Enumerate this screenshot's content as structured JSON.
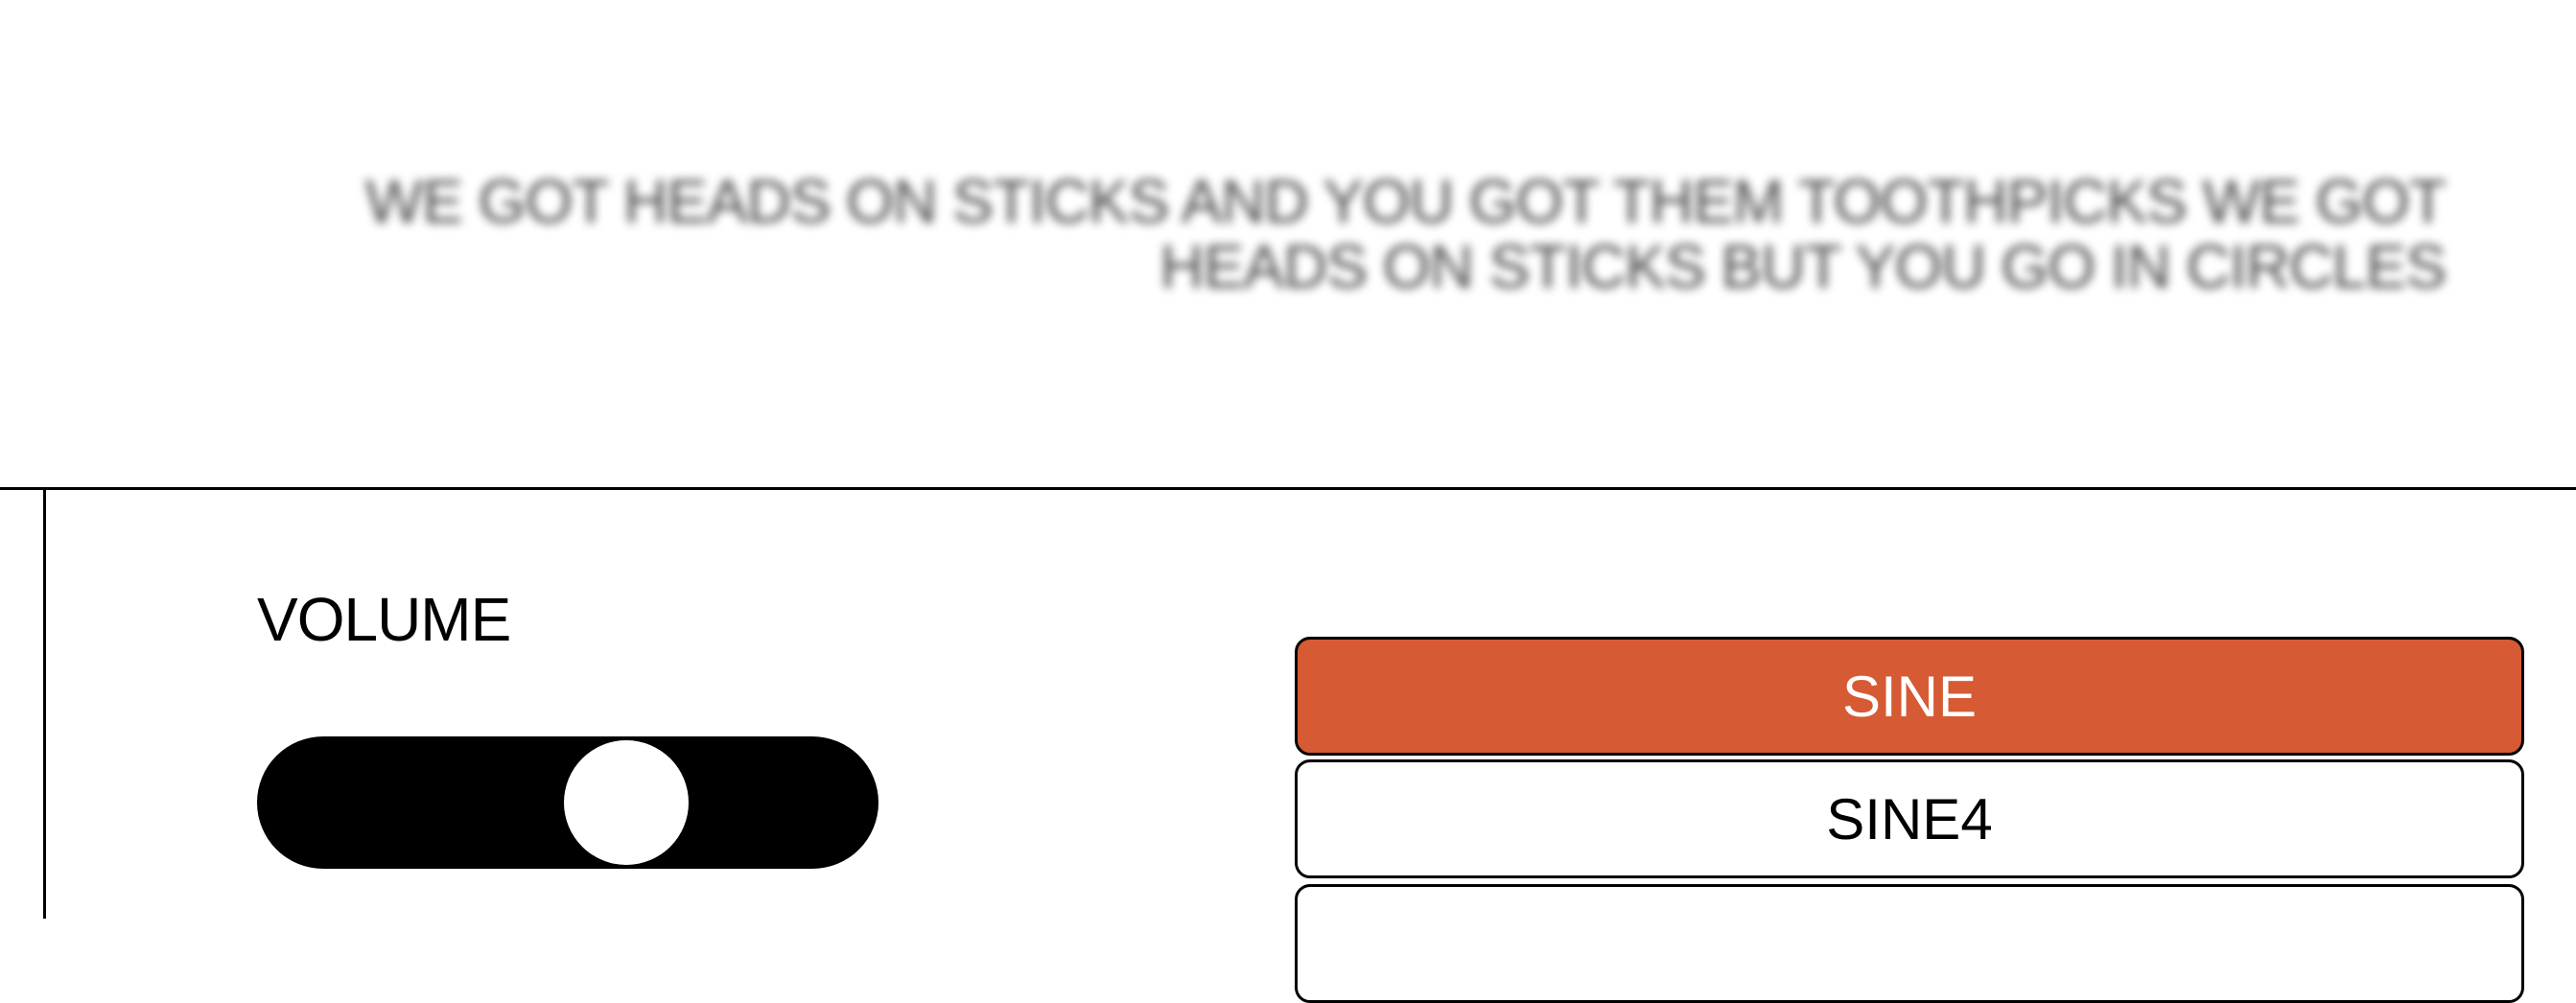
{
  "lyrics": {
    "line1": "WE GOT HEADS ON STICKS AND YOU GOT THEM TOOTHPICKS WE GOT",
    "line2": "HEADS ON STICKS BUT YOU GO IN CIRCLES"
  },
  "volume": {
    "label": "VOLUME",
    "level": 0.62
  },
  "waveforms": {
    "options": [
      {
        "label": "SINE",
        "selected": true
      },
      {
        "label": "SINE4",
        "selected": false
      },
      {
        "label": "",
        "selected": false
      }
    ]
  },
  "colors": {
    "accent": "#d65a33",
    "background": "#ffffff",
    "foreground": "#000000"
  }
}
